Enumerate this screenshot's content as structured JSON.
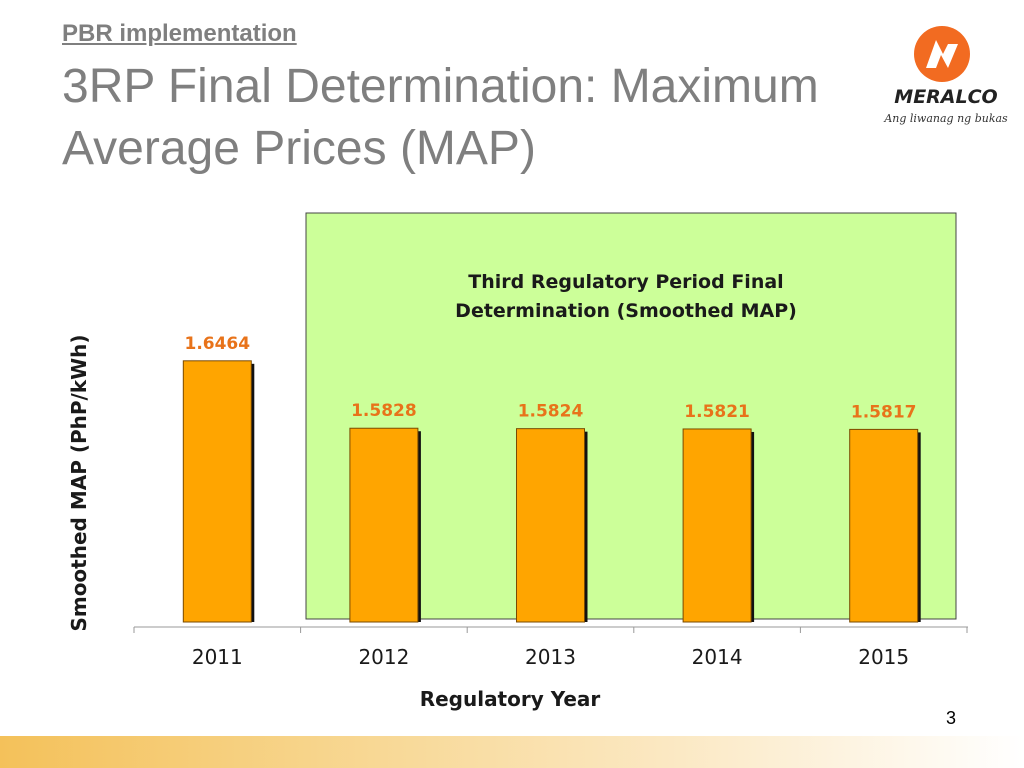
{
  "header": {
    "section_link": "PBR implementation",
    "title": "3RP Final Determination: Maximum Average Prices (MAP)"
  },
  "logo": {
    "icon": "meralco-lightning-icon",
    "wordmark": "MERALCO",
    "tagline": "Ang liwanag ng bukas"
  },
  "page_number": "3",
  "colors": {
    "bar": "#ffa500",
    "bar_stroke": "#1a1a1a",
    "highlight_bg": "#ccff99",
    "value_label": "#e8731a",
    "logo_orange": "#f26b21",
    "title_gray": "#7f7f7f"
  },
  "chart_data": {
    "type": "bar",
    "title": "",
    "annotation": "Third Regulatory Period Final Determination (Smoothed MAP)",
    "xlabel": "Regulatory Year",
    "ylabel": "Smoothed MAP (PhP/kWh)",
    "categories": [
      "2011",
      "2012",
      "2013",
      "2014",
      "2015"
    ],
    "values": [
      1.6464,
      1.5828,
      1.5824,
      1.5821,
      1.5817
    ],
    "value_labels": [
      "1.6464",
      "1.5828",
      "1.5824",
      "1.5821",
      "1.5817"
    ],
    "highlighted_categories": [
      "2012",
      "2013",
      "2014",
      "2015"
    ],
    "grid": false,
    "legend": "none"
  }
}
